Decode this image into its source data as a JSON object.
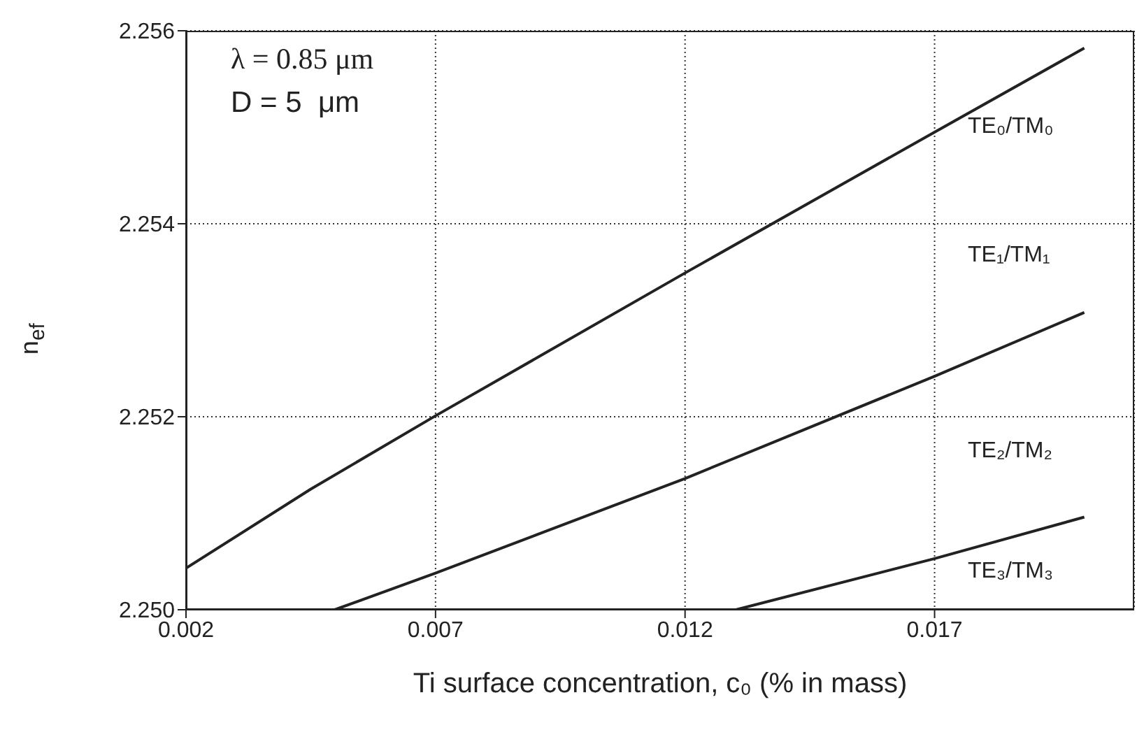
{
  "chart_data": {
    "type": "line",
    "xlabel": "Ti surface concentration, c₀  (% in mass)",
    "ylabel": "n$_{ef}$",
    "xlim": [
      0.002,
      0.021
    ],
    "xticks": [
      0.002,
      0.007,
      0.012,
      0.017
    ],
    "ylim": [
      2.25,
      2.256
    ],
    "yticks": [
      {
        "value": 2.25,
        "label": "2.250"
      },
      {
        "value": 2.252,
        "label": "2.252"
      },
      {
        "value": 2.254,
        "label": "2.254"
      },
      {
        "value": 2.256,
        "label": "2.256"
      }
    ],
    "grid": true,
    "marker": "none",
    "line_style": "solid",
    "series": [
      {
        "color": "#222222",
        "x": [
          0.002,
          0.0045,
          0.007,
          0.012,
          0.017,
          0.02
        ],
        "values": [
          2.25043,
          2.25125,
          2.25201,
          2.25349,
          2.25495,
          2.25582
        ]
      },
      {
        "color": "#222222",
        "x": [
          0.00498,
          0.007,
          0.012,
          0.017,
          0.02
        ],
        "values": [
          2.25,
          2.25038,
          2.25136,
          2.25242,
          2.25308
        ]
      },
      {
        "color": "#222222",
        "x": [
          0.01302,
          0.017,
          0.02
        ],
        "values": [
          2.25,
          2.25053,
          2.25096
        ]
      }
    ],
    "annotations": [
      "λ = 0.85 μm",
      "D = 5  μm",
      "TE₀/TM₀",
      "TE₁/TM₁",
      "TE₂/TM₂",
      "TE₃/TM₃"
    ]
  }
}
